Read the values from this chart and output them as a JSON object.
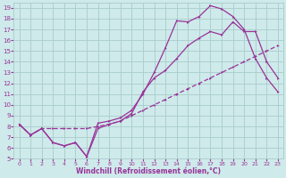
{
  "xlabel": "Windchill (Refroidissement éolien,°C)",
  "bg_color": "#ceeaea",
  "grid_color": "#aacccc",
  "line_color": "#993399",
  "xlim": [
    -0.5,
    23.5
  ],
  "ylim": [
    5,
    19.5
  ],
  "xticks": [
    0,
    1,
    2,
    3,
    4,
    5,
    6,
    7,
    8,
    9,
    10,
    11,
    12,
    13,
    14,
    15,
    16,
    17,
    18,
    19,
    20,
    21,
    22,
    23
  ],
  "yticks": [
    5,
    6,
    7,
    8,
    9,
    10,
    11,
    12,
    13,
    14,
    15,
    16,
    17,
    18,
    19
  ],
  "line1_x": [
    0,
    1,
    2,
    3,
    4,
    5,
    6,
    7,
    8,
    9,
    10,
    11,
    12,
    13,
    14,
    15,
    16,
    17,
    18,
    19,
    20,
    21,
    22,
    23
  ],
  "line1_y": [
    8.2,
    7.2,
    7.8,
    6.5,
    6.2,
    6.5,
    5.2,
    8.3,
    8.5,
    8.8,
    9.5,
    11.0,
    13.0,
    15.3,
    17.8,
    17.7,
    18.2,
    19.2,
    18.9,
    18.2,
    17.0,
    14.3,
    12.5,
    11.2
  ],
  "line2_x": [
    0,
    1,
    2,
    3,
    4,
    5,
    6,
    7,
    8,
    9,
    10,
    11,
    12,
    13,
    14,
    15,
    16,
    17,
    18,
    19,
    20,
    21,
    22,
    23
  ],
  "line2_y": [
    8.2,
    7.2,
    7.8,
    6.5,
    6.2,
    6.5,
    5.2,
    7.8,
    8.2,
    8.5,
    9.2,
    11.2,
    12.5,
    13.2,
    14.3,
    15.5,
    16.2,
    16.8,
    16.5,
    17.7,
    16.8,
    16.8,
    14.0,
    12.5
  ],
  "line3_x": [
    0,
    1,
    2,
    3,
    4,
    5,
    6,
    7,
    8,
    9,
    10,
    11,
    12,
    13,
    14,
    15,
    16,
    17,
    18,
    19,
    20,
    21,
    22,
    23
  ],
  "line3_y": [
    8.2,
    7.2,
    7.8,
    7.8,
    7.8,
    7.8,
    7.8,
    8.0,
    8.2,
    8.5,
    9.0,
    9.5,
    10.0,
    10.5,
    11.0,
    11.5,
    12.0,
    12.5,
    13.0,
    13.5,
    14.0,
    14.5,
    15.0,
    15.5
  ]
}
